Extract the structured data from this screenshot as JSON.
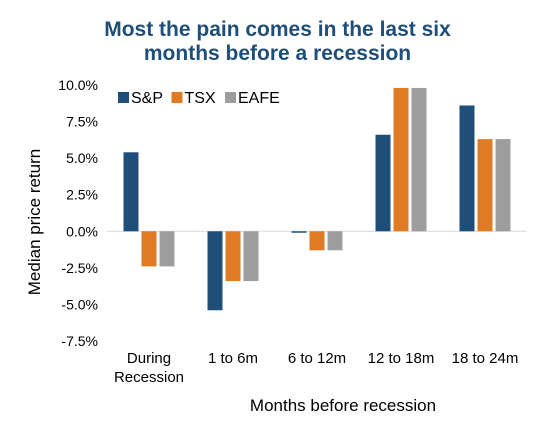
{
  "chart_data": {
    "type": "bar",
    "title_lines": [
      "Most the pain comes in the last six",
      "months before a recession"
    ],
    "xlabel": "Months before recession",
    "ylabel": "Median price return",
    "categories": [
      [
        "During",
        "Recession"
      ],
      [
        "1 to 6m"
      ],
      [
        "6 to 12m"
      ],
      [
        "12 to 18m"
      ],
      [
        "18 to 24m"
      ]
    ],
    "series": [
      {
        "name": "S&P",
        "color": "#1f4e79",
        "values": [
          5.4,
          -5.4,
          -0.1,
          6.6,
          8.6
        ]
      },
      {
        "name": "TSX",
        "color": "#e07b24",
        "values": [
          -2.4,
          -3.4,
          -1.3,
          9.8,
          6.3
        ]
      },
      {
        "name": "EAFE",
        "color": "#9d9d9d",
        "values": [
          -2.4,
          -3.4,
          -1.3,
          9.8,
          6.3
        ]
      }
    ],
    "ylim": [
      -7.5,
      10.0
    ],
    "yticks": [
      "10.0%",
      "7.5%",
      "5.0%",
      "2.5%",
      "0.0%",
      "-2.5%",
      "-5.0%",
      "-7.5%"
    ],
    "ytick_values": [
      10.0,
      7.5,
      5.0,
      2.5,
      0.0,
      -2.5,
      -5.0,
      -7.5
    ],
    "legend_position": "top-left",
    "grid": false
  }
}
